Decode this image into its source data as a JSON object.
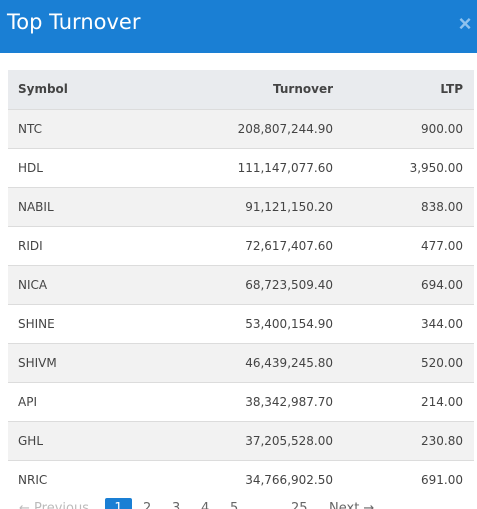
{
  "header": {
    "title": "Top Turnover",
    "close_label": "×"
  },
  "table": {
    "columns": [
      "Symbol",
      "Turnover",
      "LTP"
    ],
    "rows": [
      {
        "symbol": "NTC",
        "turnover": "208,807,244.90",
        "ltp": "900.00"
      },
      {
        "symbol": "HDL",
        "turnover": "111,147,077.60",
        "ltp": "3,950.00"
      },
      {
        "symbol": "NABIL",
        "turnover": "91,121,150.20",
        "ltp": "838.00"
      },
      {
        "symbol": "RIDI",
        "turnover": "72,617,407.60",
        "ltp": "477.00"
      },
      {
        "symbol": "NICA",
        "turnover": "68,723,509.40",
        "ltp": "694.00"
      },
      {
        "symbol": "SHINE",
        "turnover": "53,400,154.90",
        "ltp": "344.00"
      },
      {
        "symbol": "SHIVM",
        "turnover": "46,439,245.80",
        "ltp": "520.00"
      },
      {
        "symbol": "API",
        "turnover": "38,342,987.70",
        "ltp": "214.00"
      },
      {
        "symbol": "GHL",
        "turnover": "37,205,528.00",
        "ltp": "230.80"
      },
      {
        "symbol": "NRIC",
        "turnover": "34,766,902.50",
        "ltp": "691.00"
      }
    ]
  },
  "pagination": {
    "previous": "← Previous",
    "pages": [
      "1",
      "2",
      "3",
      "4",
      "5"
    ],
    "ellipsis": "…",
    "last": "25",
    "next": "Next →",
    "current": "1"
  },
  "colors": {
    "accent": "#1a7fd4"
  }
}
